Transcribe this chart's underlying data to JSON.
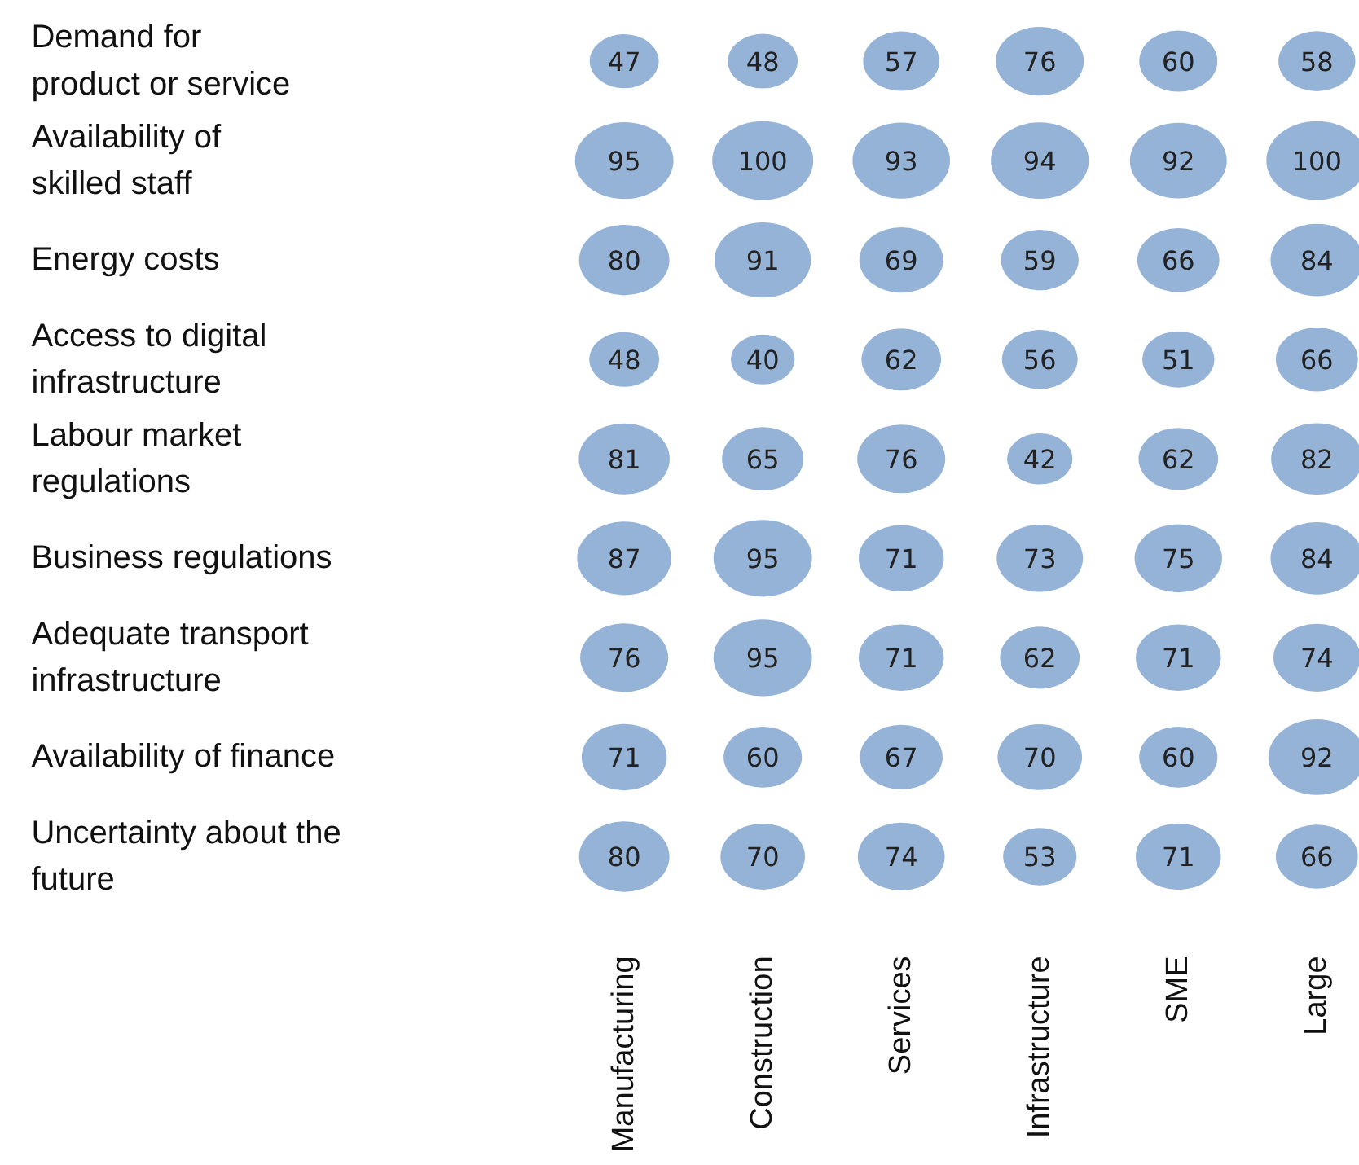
{
  "chart_data": {
    "type": "heatmap",
    "categories": [
      "Manufacturing",
      "Construction",
      "Services",
      "Infrastructure",
      "SME",
      "Large"
    ],
    "y_categories": [
      "Demand for\nproduct or service",
      "Availability of\nskilled staff",
      "Energy costs",
      "Access to digital\ninfrastructure",
      "Labour market\nregulations",
      "Business regulations",
      "Adequate transport\ninfrastructure",
      "Availability of finance",
      "Uncertainty about the\nfuture"
    ],
    "cells": [
      [
        47,
        48,
        57,
        76,
        60,
        58
      ],
      [
        95,
        100,
        93,
        94,
        92,
        100
      ],
      [
        80,
        91,
        69,
        59,
        66,
        84
      ],
      [
        48,
        40,
        62,
        56,
        51,
        66
      ],
      [
        81,
        65,
        76,
        42,
        62,
        82
      ],
      [
        87,
        95,
        71,
        73,
        75,
        84
      ],
      [
        76,
        95,
        71,
        62,
        71,
        74
      ],
      [
        71,
        60,
        67,
        70,
        60,
        92
      ],
      [
        80,
        70,
        74,
        53,
        71,
        66
      ]
    ],
    "color": "#95b3d7",
    "data_labels": true
  }
}
